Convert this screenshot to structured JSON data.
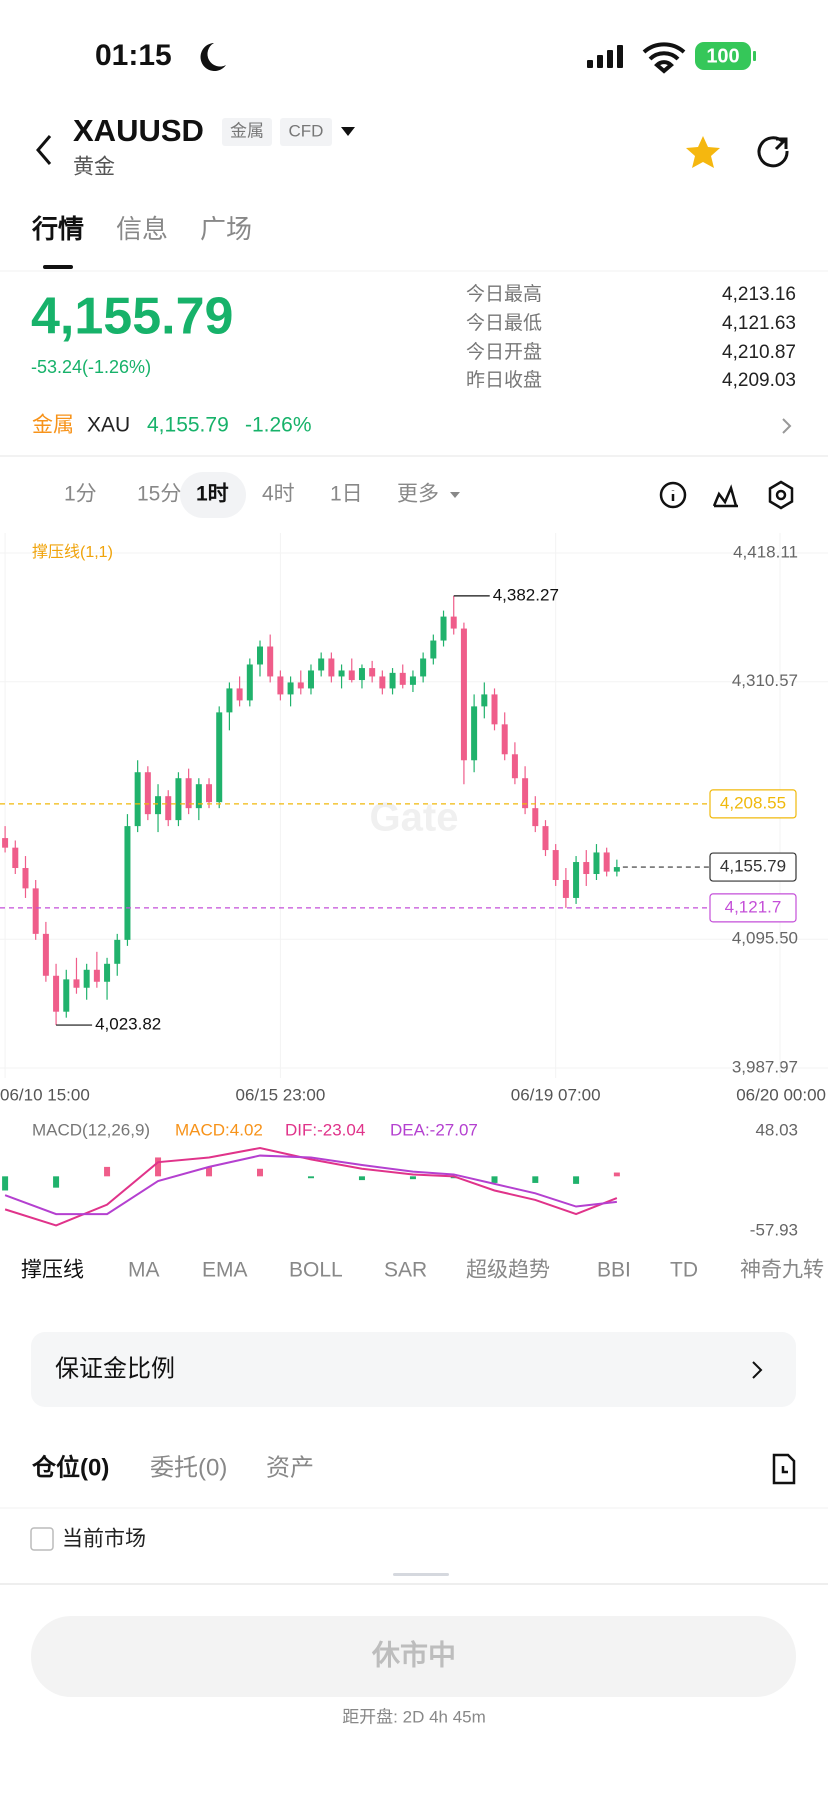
{
  "status_bar": {
    "time": "01:15",
    "battery": "100"
  },
  "header": {
    "symbol": "XAUUSD",
    "tags": [
      "金属",
      "CFD"
    ],
    "subtitle": "黄金"
  },
  "tabs": [
    "行情",
    "信息",
    "广场"
  ],
  "quote": {
    "price": "4,155.79",
    "change": "-53.24(-1.26%)"
  },
  "stats": [
    {
      "label": "今日最高",
      "value": "4,213.16"
    },
    {
      "label": "今日最低",
      "value": "4,121.63"
    },
    {
      "label": "今日开盘",
      "value": "4,210.87"
    },
    {
      "label": "昨日收盘",
      "value": "4,209.03"
    }
  ],
  "related": {
    "category": "金属",
    "symbol": "XAU",
    "price": "4,155.79",
    "change": "-1.26%"
  },
  "intervals": {
    "items": [
      "1分",
      "15分",
      "1时",
      "4时",
      "1日",
      "更多"
    ],
    "selected": "1时"
  },
  "chart_data": [
    {
      "type": "candlestick",
      "indicator_label": "撑压线(1,1)",
      "watermark": "Gate",
      "up_color": "#20b26c",
      "down_color": "#ef5d8a",
      "grid": true,
      "ylim": [
        3987.97,
        4418.11
      ],
      "yticks": [
        {
          "value": 4418.11,
          "label": "4,418.11"
        },
        {
          "value": 4310.57,
          "label": "4,310.57"
        },
        {
          "value": 4095.5,
          "label": "4,095.50"
        },
        {
          "value": 3987.97,
          "label": "3,987.97"
        }
      ],
      "xlim": [
        -0.5,
        76
      ],
      "xticks": [
        {
          "value": 0,
          "label": "06/10 15:00"
        },
        {
          "value": 27,
          "label": "06/15 23:00"
        },
        {
          "value": 54,
          "label": "06/19 07:00"
        },
        {
          "value": 76,
          "label": "06/20 00:00"
        }
      ],
      "ohlc": [
        [
          4180,
          4190,
          4168,
          4172
        ],
        [
          4172,
          4178,
          4150,
          4155
        ],
        [
          4155,
          4165,
          4130,
          4138
        ],
        [
          4138,
          4145,
          4095,
          4100
        ],
        [
          4100,
          4110,
          4060,
          4065
        ],
        [
          4065,
          4075,
          4023.82,
          4035
        ],
        [
          4035,
          4070,
          4030,
          4062
        ],
        [
          4062,
          4080,
          4050,
          4055
        ],
        [
          4055,
          4075,
          4045,
          4070
        ],
        [
          4070,
          4085,
          4055,
          4060
        ],
        [
          4060,
          4080,
          4045,
          4075
        ],
        [
          4075,
          4100,
          4065,
          4095
        ],
        [
          4095,
          4200,
          4090,
          4190
        ],
        [
          4190,
          4245,
          4185,
          4235
        ],
        [
          4235,
          4240,
          4195,
          4200
        ],
        [
          4200,
          4225,
          4185,
          4215
        ],
        [
          4215,
          4220,
          4190,
          4195
        ],
        [
          4195,
          4235,
          4190,
          4230
        ],
        [
          4230,
          4238,
          4200,
          4205
        ],
        [
          4205,
          4230,
          4195,
          4225
        ],
        [
          4225,
          4230,
          4205,
          4210
        ],
        [
          4210,
          4290,
          4205,
          4285
        ],
        [
          4285,
          4310,
          4270,
          4305
        ],
        [
          4305,
          4315,
          4290,
          4295
        ],
        [
          4295,
          4330,
          4290,
          4325
        ],
        [
          4325,
          4345,
          4315,
          4340
        ],
        [
          4340,
          4350,
          4310,
          4315
        ],
        [
          4315,
          4320,
          4295,
          4300
        ],
        [
          4300,
          4315,
          4290,
          4310
        ],
        [
          4310,
          4320,
          4300,
          4305
        ],
        [
          4305,
          4325,
          4300,
          4320
        ],
        [
          4320,
          4335,
          4315,
          4330
        ],
        [
          4330,
          4335,
          4310,
          4315
        ],
        [
          4315,
          4325,
          4305,
          4320
        ],
        [
          4320,
          4330,
          4310,
          4312
        ],
        [
          4312,
          4325,
          4305,
          4322
        ],
        [
          4322,
          4328,
          4310,
          4315
        ],
        [
          4315,
          4320,
          4300,
          4305
        ],
        [
          4305,
          4322,
          4300,
          4318
        ],
        [
          4318,
          4325,
          4305,
          4308
        ],
        [
          4308,
          4320,
          4302,
          4315
        ],
        [
          4315,
          4335,
          4310,
          4330
        ],
        [
          4330,
          4350,
          4325,
          4345
        ],
        [
          4345,
          4370,
          4340,
          4365
        ],
        [
          4365,
          4382.27,
          4350,
          4355
        ],
        [
          4355,
          4360,
          4225,
          4245
        ],
        [
          4245,
          4300,
          4235,
          4290
        ],
        [
          4290,
          4310,
          4280,
          4300
        ],
        [
          4300,
          4305,
          4270,
          4275
        ],
        [
          4275,
          4285,
          4245,
          4250
        ],
        [
          4250,
          4260,
          4225,
          4230
        ],
        [
          4230,
          4240,
          4200,
          4205
        ],
        [
          4205,
          4215,
          4185,
          4190
        ],
        [
          4190,
          4195,
          4165,
          4170
        ],
        [
          4170,
          4175,
          4140,
          4145
        ],
        [
          4145,
          4155,
          4121.7,
          4130
        ],
        [
          4130,
          4165,
          4125,
          4160
        ],
        [
          4160,
          4170,
          4140,
          4150
        ],
        [
          4150,
          4175,
          4145,
          4168
        ],
        [
          4168,
          4172,
          4148,
          4152
        ],
        [
          4152,
          4162,
          4148,
          4155.79
        ]
      ],
      "extreme_labels": {
        "high": "4,382.27",
        "low": "4,023.82"
      },
      "levels": [
        {
          "value": 4208.55,
          "label": "4,208.55",
          "color": "#f0b90b"
        },
        {
          "value": 4121.7,
          "label": "4,121.7",
          "color": "#c44fd8"
        },
        {
          "value": 4155.79,
          "label": "4,155.79",
          "color": "#333333"
        }
      ]
    },
    {
      "type": "line",
      "title": "MACD(12,26,9)",
      "ylim": [
        -57.93,
        48.03
      ],
      "yticks": [
        48.03,
        -57.93
      ],
      "x": [
        0,
        5,
        10,
        15,
        20,
        25,
        30,
        35,
        40,
        44,
        48,
        52,
        56,
        60
      ],
      "series": [
        {
          "name": "MACD:4.02",
          "color": "#f7931a",
          "type": "bar",
          "up_color": "#ef5d8a",
          "down_color": "#20b26c",
          "values": [
            -15,
            -12,
            10,
            20,
            10,
            8,
            -2,
            -4,
            -3,
            -2,
            -7,
            -7,
            -8,
            4.02
          ]
        },
        {
          "name": "DIF:-23.04",
          "color": "#e0338a",
          "type": "line",
          "values": [
            -35,
            -52,
            -30,
            15,
            20,
            30,
            18,
            8,
            2,
            0,
            -15,
            -25,
            -40,
            -23.04
          ]
        },
        {
          "name": "DEA:-27.07",
          "color": "#b440d0",
          "type": "line",
          "values": [
            -20,
            -40,
            -40,
            -5,
            10,
            22,
            20,
            12,
            5,
            2,
            -8,
            -18,
            -32,
            -27.07
          ]
        }
      ]
    }
  ],
  "indicators": [
    "撑压线",
    "MA",
    "EMA",
    "BOLL",
    "SAR",
    "超级趋势",
    "BBI",
    "TD",
    "神奇九转"
  ],
  "margin": {
    "label": "保证金比例"
  },
  "positions": {
    "tabs": [
      "仓位(0)",
      "委托(0)",
      "资产"
    ],
    "checkbox": "当前市场"
  },
  "button": {
    "label": "休市中",
    "note": "距开盘: 2D 4h 45m"
  }
}
